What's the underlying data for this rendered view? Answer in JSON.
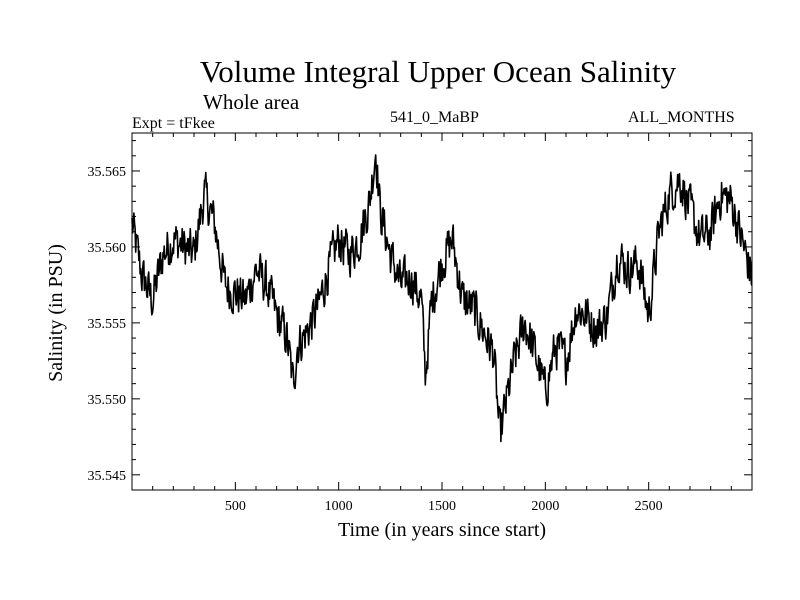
{
  "chart_data": {
    "type": "line",
    "title": "Volume Integral Upper Ocean Salinity",
    "subtitle": "Whole area",
    "annotations": {
      "left": "Expt = tFkee",
      "center": "541_0_MaBP",
      "right": "ALL_MONTHS"
    },
    "xlabel": "Time (in years since start)",
    "ylabel": "Salinity (in PSU)",
    "xlim": [
      0,
      3000
    ],
    "ylim": [
      35.544,
      35.5675
    ],
    "xticks": [
      500,
      1000,
      1500,
      2000,
      2500
    ],
    "xtick_labels": [
      "500",
      "1000",
      "1500",
      "2000",
      "2500"
    ],
    "yticks": [
      35.545,
      35.55,
      35.555,
      35.56,
      35.565
    ],
    "ytick_labels": [
      "35.545",
      "35.550",
      "35.555",
      "35.560",
      "35.565"
    ],
    "grid": false,
    "line_color": "#000000",
    "series": [
      {
        "x": [
          0,
          50,
          100,
          150,
          200,
          250,
          300,
          350,
          400,
          450,
          500,
          550,
          600,
          650,
          700,
          750,
          780,
          800,
          850,
          900,
          950,
          1000,
          1050,
          1100,
          1150,
          1180,
          1200,
          1250,
          1300,
          1350,
          1400,
          1420,
          1450,
          1500,
          1550,
          1600,
          1650,
          1700,
          1750,
          1780,
          1800,
          1850,
          1900,
          1950,
          2000,
          2050,
          2100,
          2150,
          2200,
          2250,
          2300,
          2350,
          2400,
          2450,
          2500,
          2550,
          2600,
          2650,
          2700,
          2750,
          2800,
          2850,
          2900,
          2950,
          3000
        ],
        "values": [
          35.5615,
          35.558,
          35.5565,
          35.5595,
          35.5605,
          35.56,
          35.5595,
          35.5635,
          35.5615,
          35.5575,
          35.557,
          35.5565,
          35.5585,
          35.5575,
          35.5555,
          35.554,
          35.551,
          35.5535,
          35.5545,
          35.556,
          35.5585,
          35.5605,
          35.5595,
          35.5605,
          35.563,
          35.5665,
          35.5625,
          35.5595,
          35.5575,
          35.558,
          35.5565,
          35.5515,
          35.5565,
          35.559,
          35.5605,
          35.5565,
          35.556,
          35.5545,
          35.553,
          35.5475,
          35.549,
          35.5525,
          35.555,
          35.553,
          35.5505,
          35.5535,
          35.5525,
          35.556,
          35.5555,
          35.5545,
          35.5555,
          35.5595,
          35.5585,
          35.559,
          35.5555,
          35.561,
          35.5635,
          35.5645,
          35.5625,
          35.5605,
          35.561,
          35.5635,
          35.563,
          35.5605,
          35.558
        ]
      }
    ]
  }
}
